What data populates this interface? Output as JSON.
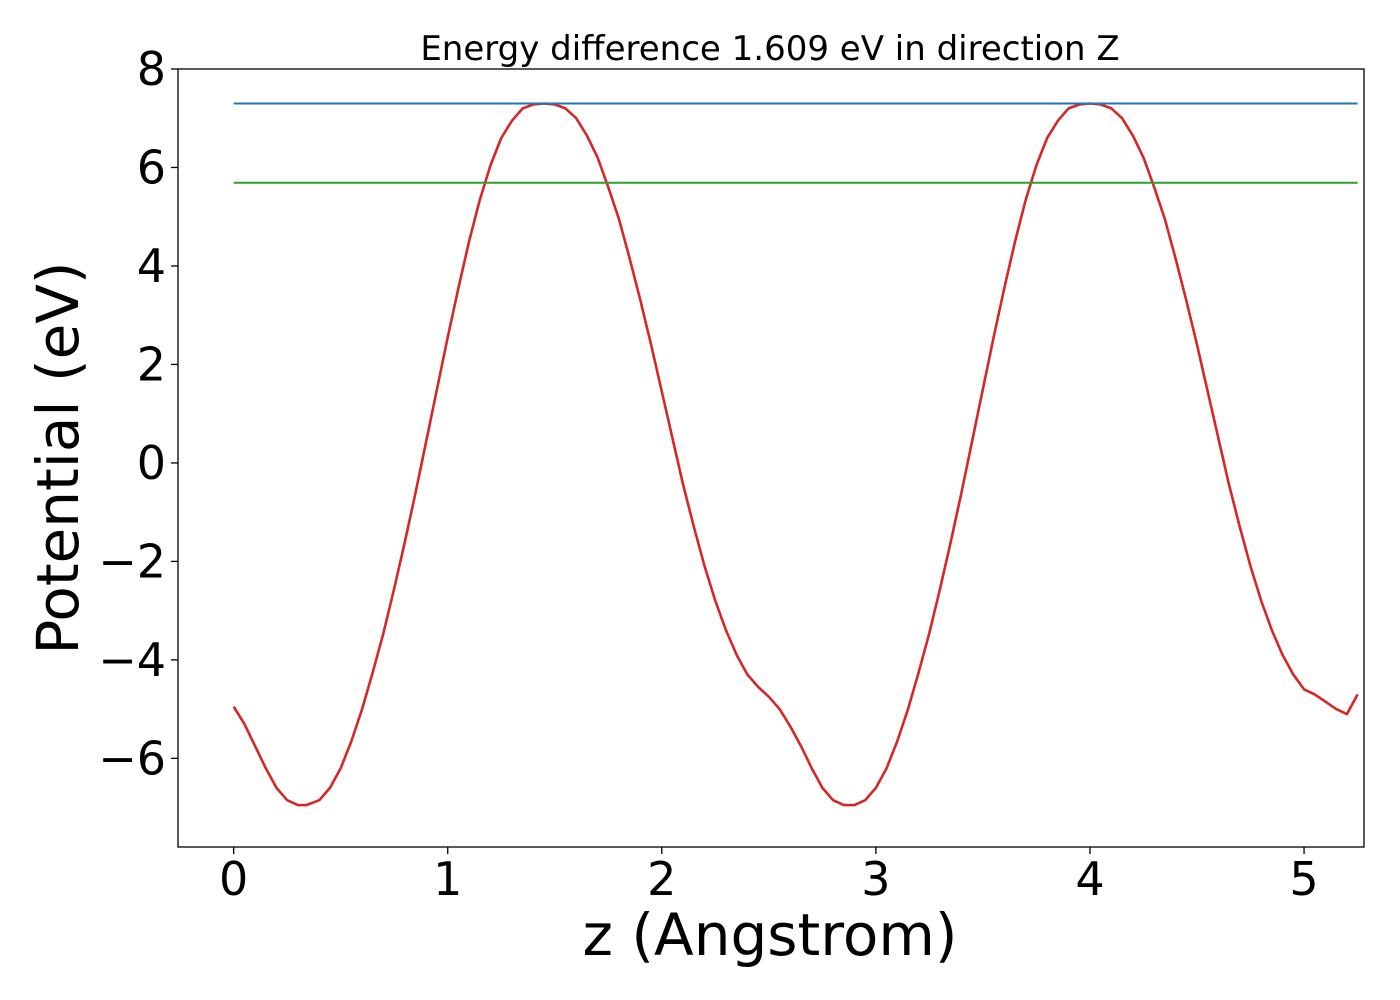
{
  "chart_data": {
    "type": "line",
    "title": "Energy difference 1.609 eV in direction Z",
    "xlabel": "z (Angstrom)",
    "ylabel": "Potential (eV)",
    "xlim": [
      -0.26,
      5.28
    ],
    "ylim": [
      -7.8,
      8.0
    ],
    "xticks": [
      0,
      1,
      2,
      3,
      4,
      5
    ],
    "yticks": [
      -6,
      -4,
      -2,
      0,
      2,
      4,
      6,
      8
    ],
    "xtick_labels": [
      "0",
      "1",
      "2",
      "3",
      "4",
      "5"
    ],
    "ytick_labels": [
      "−6",
      "−4",
      "−2",
      "0",
      "2",
      "4",
      "6",
      "8"
    ],
    "grid": false,
    "legend": "none",
    "series": [
      {
        "color": "#d62728",
        "x": [
          0.0,
          0.05,
          0.1,
          0.15,
          0.2,
          0.25,
          0.3,
          0.34,
          0.4,
          0.45,
          0.5,
          0.55,
          0.6,
          0.65,
          0.7,
          0.75,
          0.8,
          0.85,
          0.9,
          0.95,
          1.0,
          1.05,
          1.1,
          1.15,
          1.2,
          1.25,
          1.3,
          1.35,
          1.4,
          1.45,
          1.5,
          1.55,
          1.6,
          1.65,
          1.7,
          1.75,
          1.8,
          1.85,
          1.9,
          1.95,
          2.0,
          2.05,
          2.1,
          2.15,
          2.2,
          2.25,
          2.3,
          2.35,
          2.4,
          2.45,
          2.5,
          2.55,
          2.6,
          2.65,
          2.7,
          2.75,
          2.8,
          2.85,
          2.9,
          2.95,
          3.0,
          3.05,
          3.1,
          3.15,
          3.2,
          3.25,
          3.3,
          3.35,
          3.4,
          3.45,
          3.5,
          3.55,
          3.6,
          3.65,
          3.7,
          3.75,
          3.8,
          3.85,
          3.9,
          3.95,
          4.0,
          4.05,
          4.1,
          4.15,
          4.2,
          4.25,
          4.3,
          4.35,
          4.4,
          4.45,
          4.5,
          4.55,
          4.6,
          4.65,
          4.7,
          4.75,
          4.8,
          4.85,
          4.9,
          4.95,
          5.0,
          5.05,
          5.1,
          5.15,
          5.2,
          5.25
        ],
        "y": [
          -4.95,
          -5.3,
          -5.75,
          -6.2,
          -6.6,
          -6.85,
          -6.95,
          -6.95,
          -6.85,
          -6.6,
          -6.2,
          -5.65,
          -5.0,
          -4.25,
          -3.45,
          -2.55,
          -1.6,
          -0.6,
          0.45,
          1.5,
          2.55,
          3.55,
          4.5,
          5.35,
          6.05,
          6.6,
          6.95,
          7.2,
          7.28,
          7.3,
          7.28,
          7.2,
          7.0,
          6.65,
          6.2,
          5.6,
          4.95,
          4.15,
          3.3,
          2.4,
          1.45,
          0.5,
          -0.45,
          -1.3,
          -2.1,
          -2.8,
          -3.4,
          -3.9,
          -4.3,
          -4.55,
          -4.75,
          -5.0,
          -5.35,
          -5.75,
          -6.2,
          -6.6,
          -6.85,
          -6.95,
          -6.95,
          -6.85,
          -6.6,
          -6.2,
          -5.65,
          -5.0,
          -4.25,
          -3.45,
          -2.55,
          -1.6,
          -0.6,
          0.45,
          1.5,
          2.55,
          3.55,
          4.5,
          5.35,
          6.05,
          6.6,
          6.95,
          7.2,
          7.28,
          7.3,
          7.28,
          7.2,
          7.0,
          6.65,
          6.2,
          5.6,
          4.95,
          4.15,
          3.3,
          2.4,
          1.45,
          0.5,
          -0.45,
          -1.3,
          -2.1,
          -2.8,
          -3.4,
          -3.9,
          -4.3,
          -4.6,
          -4.7,
          -4.85,
          -5.0,
          -5.1,
          -4.7
        ]
      },
      {
        "color": "#1f77b4",
        "x": [
          0.0,
          5.25
        ],
        "y": [
          7.3,
          7.3
        ]
      },
      {
        "color": "#2ca02c",
        "x": [
          0.0,
          5.25
        ],
        "y": [
          5.69,
          5.69
        ]
      }
    ]
  }
}
